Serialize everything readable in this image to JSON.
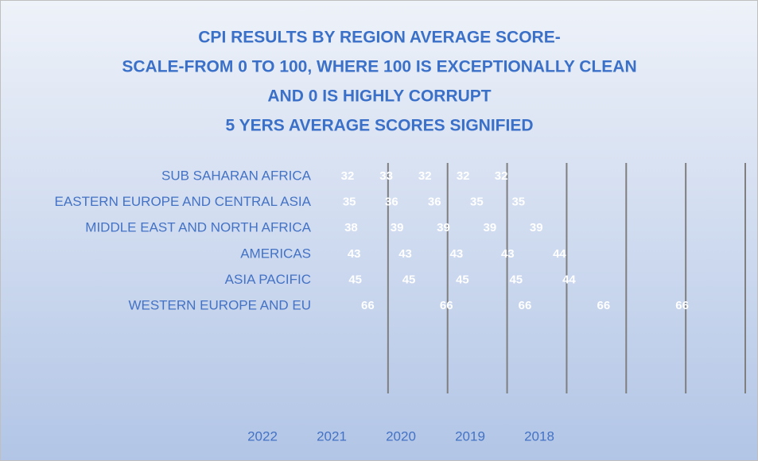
{
  "chart_data": {
    "type": "stacked-bar-horizontal",
    "title": [
      "CPI RESULTS BY REGION AVERAGE SCORE-",
      "SCALE-FROM 0 TO 100, WHERE 100 IS EXCEPTIONALLY CLEAN",
      "AND 0 IS HIGHLY CORRUPT",
      "5 YERS AVERAGE SCORES SIGNIFIED"
    ],
    "categories": [
      "SUB SAHARAN AFRICA",
      "EASTERN EUROPE AND CENTRAL ASIA",
      "MIDDLE EAST AND NORTH AFRICA",
      "AMERICAS",
      "ASIA PACIFIC",
      "WESTERN EUROPE AND EU"
    ],
    "series": [
      {
        "name": "2022",
        "color": "transparent",
        "values": [
          32,
          35,
          38,
          43,
          45,
          66
        ]
      },
      {
        "name": "2021",
        "color": "transparent",
        "values": [
          33,
          36,
          39,
          43,
          45,
          66
        ]
      },
      {
        "name": "2020",
        "color": "transparent",
        "values": [
          32,
          36,
          39,
          43,
          45,
          66
        ]
      },
      {
        "name": "2019",
        "color": "transparent",
        "values": [
          32,
          35,
          39,
          43,
          45,
          66
        ]
      },
      {
        "name": "2018",
        "color": "transparent",
        "values": [
          32,
          35,
          39,
          44,
          44,
          66
        ]
      }
    ],
    "xlim": [
      0,
      350
    ],
    "xticks": [
      50,
      100,
      150,
      200,
      250,
      300,
      350
    ],
    "grid": true,
    "legend": "bottom"
  }
}
